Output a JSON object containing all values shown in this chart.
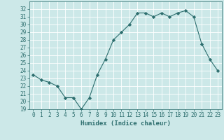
{
  "x": [
    0,
    1,
    2,
    3,
    4,
    5,
    6,
    7,
    8,
    9,
    10,
    11,
    12,
    13,
    14,
    15,
    16,
    17,
    18,
    19,
    20,
    21,
    22,
    23
  ],
  "y": [
    23.5,
    22.8,
    22.5,
    22.0,
    20.5,
    20.5,
    19.0,
    20.5,
    23.5,
    25.5,
    28.0,
    29.0,
    30.0,
    31.5,
    31.5,
    31.0,
    31.5,
    31.0,
    31.5,
    31.8,
    31.0,
    27.5,
    25.5,
    24.0
  ],
  "xlabel": "Humidex (Indice chaleur)",
  "xlim": [
    -0.5,
    23.5
  ],
  "ylim": [
    19,
    33
  ],
  "yticks": [
    19,
    20,
    21,
    22,
    23,
    24,
    25,
    26,
    27,
    28,
    29,
    30,
    31,
    32
  ],
  "xticks": [
    0,
    1,
    2,
    3,
    4,
    5,
    6,
    7,
    8,
    9,
    10,
    11,
    12,
    13,
    14,
    15,
    16,
    17,
    18,
    19,
    20,
    21,
    22,
    23
  ],
  "line_color": "#2d6e6e",
  "marker": "D",
  "marker_size": 2.2,
  "bg_color": "#cce8e8",
  "grid_color": "#b8d8d8",
  "tick_label_fontsize": 5.5,
  "xlabel_fontsize": 6.5
}
